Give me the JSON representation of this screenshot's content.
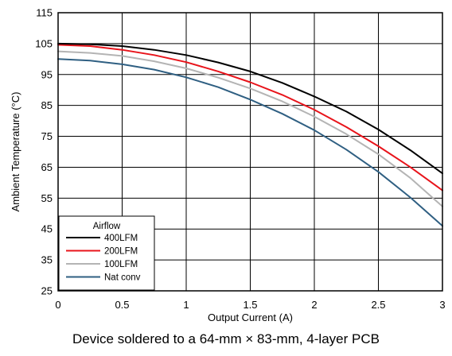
{
  "chart_data": {
    "type": "line",
    "title": "",
    "xlabel": "Output Current (A)",
    "ylabel": "Ambient Temperature (°C)",
    "xlim": [
      0,
      3
    ],
    "ylim": [
      25,
      115
    ],
    "xticks": [
      "0",
      "0.5",
      "1",
      "1.5",
      "2",
      "2.5",
      "3"
    ],
    "yticks": [
      "25",
      "35",
      "45",
      "55",
      "65",
      "75",
      "85",
      "95",
      "105",
      "115"
    ],
    "grid": true,
    "legend": {
      "title": "Airflow",
      "position": "bottom-left"
    },
    "series": [
      {
        "name": "400LFM",
        "color": "#000000",
        "x": [
          0,
          0.25,
          0.5,
          0.75,
          1.0,
          1.25,
          1.5,
          1.75,
          2.0,
          2.25,
          2.5,
          2.75,
          3.0
        ],
        "y": [
          105,
          104.8,
          104.2,
          103.0,
          101.3,
          98.9,
          96.0,
          92.3,
          87.9,
          83.0,
          77.2,
          70.5,
          63.0
        ]
      },
      {
        "name": "200LFM",
        "color": "#e8141b",
        "x": [
          0,
          0.25,
          0.5,
          0.75,
          1.0,
          1.25,
          1.5,
          1.75,
          2.0,
          2.25,
          2.5,
          2.75,
          3.0
        ],
        "y": [
          104.6,
          104.2,
          103.0,
          101.3,
          99.0,
          96.0,
          92.5,
          88.4,
          83.6,
          78.0,
          71.8,
          65.0,
          57.5
        ]
      },
      {
        "name": "100LFM",
        "color": "#b4b4b4",
        "x": [
          0,
          0.25,
          0.5,
          0.75,
          1.0,
          1.25,
          1.5,
          1.75,
          2.0,
          2.25,
          2.5,
          2.75,
          3.0
        ],
        "y": [
          102.5,
          102.0,
          101.0,
          99.3,
          97.0,
          94.0,
          90.5,
          86.3,
          81.4,
          75.7,
          69.2,
          61.5,
          52.3
        ]
      },
      {
        "name": "Nat conv",
        "color": "#2f5f82",
        "x": [
          0,
          0.25,
          0.5,
          0.75,
          1.0,
          1.25,
          1.5,
          1.75,
          2.0,
          2.25,
          2.5,
          2.75,
          3.0
        ],
        "y": [
          100.0,
          99.5,
          98.3,
          96.6,
          94.1,
          90.9,
          86.9,
          82.3,
          77.0,
          70.7,
          63.5,
          55.2,
          46.0
        ]
      }
    ]
  },
  "caption": "Device soldered to a 64-mm × 83-mm, 4-layer PCB"
}
